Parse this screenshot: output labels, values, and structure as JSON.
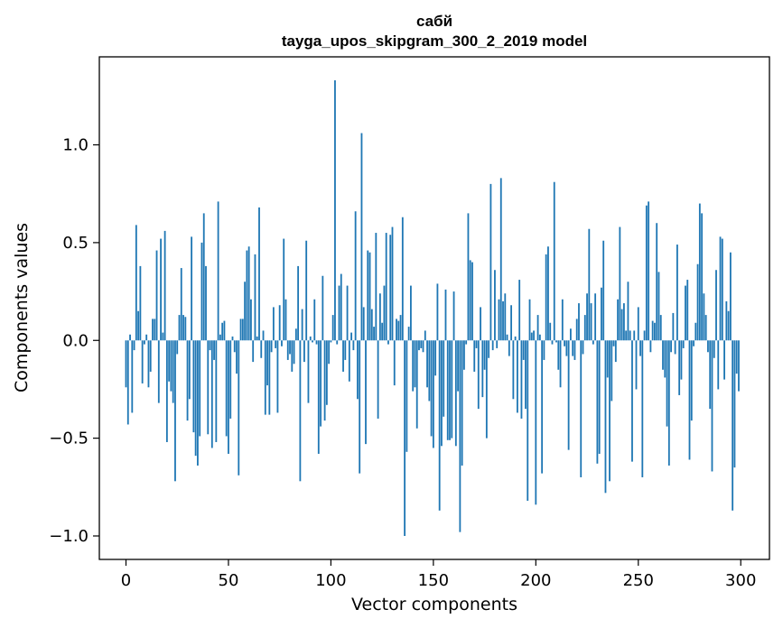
{
  "chart_data": {
    "type": "bar",
    "title": "сабй",
    "subtitle": "tayga_upos_skipgram_300_2_2019 model",
    "xlabel": "Vector components",
    "ylabel": "Components values",
    "xlim": [
      -13,
      314
    ],
    "ylim": [
      -1.12,
      1.45
    ],
    "xticks": [
      0,
      50,
      100,
      150,
      200,
      250,
      300
    ],
    "xtick_labels": [
      "0",
      "50",
      "100",
      "150",
      "200",
      "250",
      "300"
    ],
    "yticks": [
      -1.0,
      -0.5,
      0.0,
      0.5,
      1.0
    ],
    "ytick_labels": [
      "−1.0",
      "−0.5",
      "0.0",
      "0.5",
      "1.0"
    ],
    "bar_color": "#1f77b4",
    "grid": false,
    "x_start": 0,
    "values": [
      -0.24,
      -0.43,
      0.03,
      -0.37,
      -0.05,
      0.59,
      0.15,
      0.38,
      -0.22,
      -0.02,
      0.03,
      -0.24,
      -0.16,
      0.11,
      0.11,
      0.46,
      -0.32,
      0.52,
      0.04,
      0.56,
      -0.52,
      -0.21,
      -0.26,
      -0.32,
      -0.72,
      -0.07,
      0.13,
      0.37,
      0.13,
      0.12,
      -0.41,
      -0.3,
      0.53,
      -0.47,
      -0.59,
      -0.64,
      -0.49,
      0.5,
      0.65,
      0.38,
      -0.48,
      -0.05,
      -0.55,
      -0.1,
      -0.52,
      0.71,
      0.03,
      0.09,
      0.1,
      -0.49,
      -0.58,
      -0.4,
      0.02,
      -0.06,
      -0.17,
      -0.69,
      0.11,
      0.11,
      0.3,
      0.46,
      0.48,
      0.21,
      -0.11,
      0.44,
      0.02,
      0.68,
      -0.09,
      0.05,
      -0.38,
      -0.23,
      -0.38,
      -0.06,
      0.17,
      -0.04,
      -0.37,
      0.18,
      -0.03,
      0.52,
      0.21,
      -0.1,
      -0.07,
      -0.16,
      -0.12,
      0.06,
      0.38,
      -0.72,
      0.16,
      -0.11,
      0.51,
      -0.32,
      0.02,
      -0.01,
      0.21,
      -0.02,
      -0.58,
      -0.44,
      0.33,
      -0.41,
      -0.33,
      -0.12,
      -0.01,
      0.13,
      1.33,
      -0.02,
      0.28,
      0.34,
      -0.16,
      -0.1,
      0.28,
      -0.21,
      0.04,
      -0.05,
      0.66,
      -0.3,
      -0.68,
      1.06,
      0.17,
      -0.53,
      0.46,
      0.45,
      0.16,
      0.07,
      0.55,
      -0.4,
      0.24,
      0.09,
      0.28,
      0.55,
      -0.02,
      0.54,
      0.58,
      -0.23,
      0.11,
      0.1,
      0.13,
      0.63,
      -1.0,
      -0.57,
      0.07,
      0.28,
      -0.26,
      -0.24,
      -0.45,
      -0.05,
      -0.04,
      -0.06,
      0.05,
      -0.24,
      -0.31,
      -0.49,
      -0.55,
      -0.18,
      0.29,
      -0.87,
      -0.54,
      -0.39,
      0.26,
      -0.51,
      -0.51,
      -0.5,
      0.25,
      -0.54,
      -0.26,
      -0.98,
      -0.64,
      -0.15,
      -0.02,
      0.65,
      0.41,
      0.4,
      -0.16,
      -0.04,
      -0.35,
      0.17,
      -0.29,
      -0.15,
      -0.5,
      -0.09,
      0.8,
      -0.05,
      0.36,
      -0.04,
      0.21,
      0.83,
      0.2,
      0.24,
      0.03,
      -0.08,
      0.18,
      -0.3,
      0.02,
      -0.37,
      0.31,
      -0.4,
      -0.1,
      -0.35,
      -0.82,
      0.21,
      0.04,
      0.05,
      -0.84,
      0.13,
      0.03,
      -0.68,
      -0.1,
      0.44,
      0.48,
      0.09,
      -0.02,
      0.81,
      -0.01,
      -0.15,
      -0.24,
      0.21,
      -0.03,
      -0.08,
      -0.56,
      0.06,
      -0.08,
      -0.1,
      0.11,
      0.19,
      -0.7,
      -0.07,
      0.13,
      0.24,
      0.57,
      0.19,
      -0.02,
      0.24,
      -0.63,
      -0.58,
      0.27,
      0.51,
      -0.78,
      -0.19,
      -0.72,
      -0.31,
      -0.03,
      -0.11,
      0.21,
      0.58,
      0.16,
      0.19,
      0.05,
      0.3,
      0.05,
      -0.62,
      0.05,
      -0.25,
      0.17,
      -0.08,
      -0.7,
      0.05,
      0.69,
      0.71,
      -0.06,
      0.1,
      0.09,
      0.6,
      0.35,
      0.13,
      -0.15,
      -0.19,
      -0.44,
      -0.64,
      -0.06,
      0.14,
      -0.07,
      0.49,
      -0.28,
      -0.2,
      -0.04,
      0.28,
      0.31,
      -0.61,
      -0.41,
      -0.03,
      0.09,
      0.39,
      0.7,
      0.65,
      0.24,
      0.13,
      -0.06,
      -0.35,
      -0.67,
      -0.09,
      0.36,
      -0.25,
      0.53,
      0.52,
      -0.2,
      0.2,
      0.15,
      0.45,
      -0.87,
      -0.65,
      -0.17,
      -0.26
    ]
  }
}
